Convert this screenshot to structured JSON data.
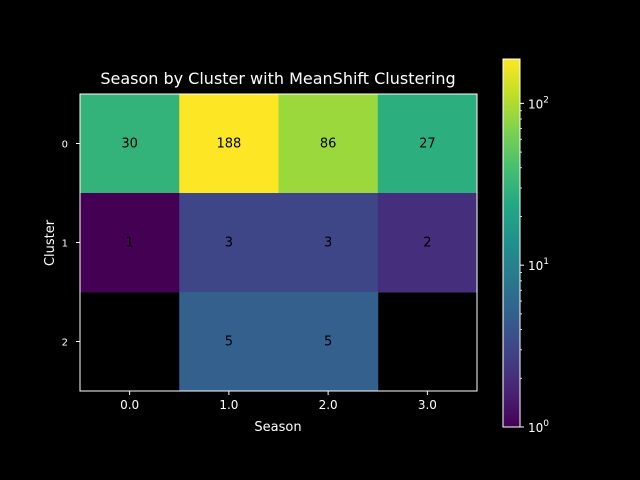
{
  "chart_data": {
    "type": "heatmap",
    "title": "Season by Cluster with MeanShift Clustering",
    "xlabel": "Season",
    "ylabel": "Cluster",
    "x_categories": [
      "0.0",
      "1.0",
      "2.0",
      "3.0"
    ],
    "y_categories": [
      "0",
      "1",
      "2"
    ],
    "values": [
      [
        30,
        188,
        86,
        27
      ],
      [
        1,
        3,
        3,
        2
      ],
      [
        null,
        5,
        5,
        null
      ]
    ],
    "colorbar": {
      "scale": "log",
      "colormap": "viridis",
      "range": [
        1,
        188
      ],
      "tick_values": [
        1,
        10,
        100
      ],
      "tick_labels": [
        {
          "base": "10",
          "exp": "0"
        },
        {
          "base": "10",
          "exp": "1"
        },
        {
          "base": "10",
          "exp": "2"
        }
      ]
    },
    "grid": false,
    "colors": {
      "background": "#000000",
      "frame": "#ffffff",
      "missing": "#000000"
    }
  }
}
